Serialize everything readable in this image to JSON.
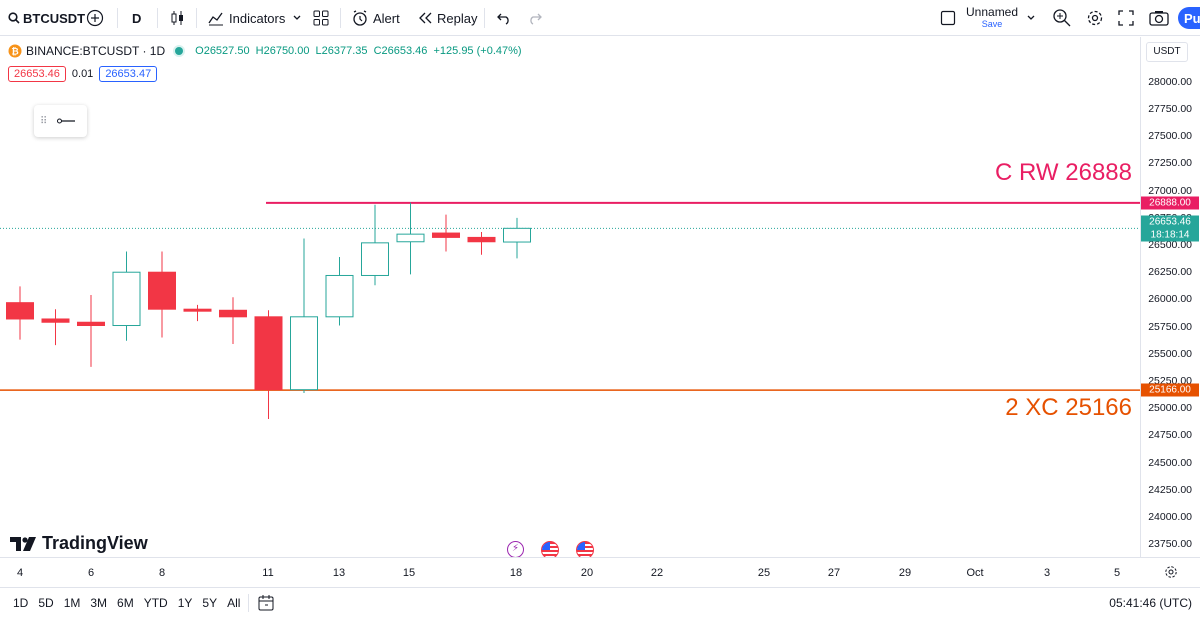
{
  "toolbar": {
    "symbol": "BTCUSDT",
    "interval": "D",
    "indicators_label": "Indicators",
    "alert_label": "Alert",
    "replay_label": "Replay",
    "layout_name": "Unnamed",
    "layout_save": "Save",
    "publish_label": "Pu"
  },
  "legend": {
    "symbol_title": "BINANCE:BTCUSDT · 1D",
    "open": "O26527.50",
    "high": "H26750.00",
    "low": "L26377.35",
    "close": "C26653.46",
    "change": "+125.95 (+0.47%)",
    "bid": "26653.46",
    "spread": "0.01",
    "ask": "26653.47"
  },
  "currency": "USDT",
  "price_axis": {
    "min": 23650,
    "max": 28100,
    "ticks": [
      "28000.00",
      "27750.00",
      "27500.00",
      "27250.00",
      "27000.00",
      "26750.00",
      "26500.00",
      "26250.00",
      "26000.00",
      "25750.00",
      "25500.00",
      "25250.00",
      "25000.00",
      "24750.00",
      "24500.00",
      "24250.00",
      "24000.00",
      "23750.00"
    ],
    "last_price": "26653.46",
    "countdown": "18:18:14",
    "resistance_tag": "26888.00",
    "support_tag": "25166.00"
  },
  "annotations": {
    "resistance_text": "C RW 26888",
    "support_text": "2 XC 25166",
    "resistance_color": "#e91e63",
    "support_color": "#e65100"
  },
  "colors": {
    "up": "#26a69a",
    "down": "#f23645"
  },
  "chart_data": {
    "type": "candlestick",
    "candles": [
      {
        "date": "Sep 4",
        "open": 25970,
        "high": 26120,
        "low": 25630,
        "close": 25820
      },
      {
        "date": "Sep 5",
        "open": 25820,
        "high": 25910,
        "low": 25580,
        "close": 25790
      },
      {
        "date": "Sep 6",
        "open": 25790,
        "high": 26040,
        "low": 25380,
        "close": 25760
      },
      {
        "date": "Sep 7",
        "open": 25760,
        "high": 26440,
        "low": 25620,
        "close": 26250
      },
      {
        "date": "Sep 8",
        "open": 26250,
        "high": 26440,
        "low": 25650,
        "close": 25910
      },
      {
        "date": "Sep 9",
        "open": 25910,
        "high": 25950,
        "low": 25800,
        "close": 25900
      },
      {
        "date": "Sep 10",
        "open": 25900,
        "high": 26020,
        "low": 25590,
        "close": 25840
      },
      {
        "date": "Sep 11",
        "open": 25840,
        "high": 25900,
        "low": 24900,
        "close": 25170
      },
      {
        "date": "Sep 12",
        "open": 25170,
        "high": 26560,
        "low": 25140,
        "close": 25840
      },
      {
        "date": "Sep 13",
        "open": 25840,
        "high": 26390,
        "low": 25760,
        "close": 26220
      },
      {
        "date": "Sep 14",
        "open": 26220,
        "high": 26870,
        "low": 26130,
        "close": 26520
      },
      {
        "date": "Sep 15",
        "open": 26530,
        "high": 26890,
        "low": 26230,
        "close": 26600
      },
      {
        "date": "Sep 16",
        "open": 26610,
        "high": 26780,
        "low": 26440,
        "close": 26570
      },
      {
        "date": "Sep 17",
        "open": 26570,
        "high": 26620,
        "low": 26410,
        "close": 26530
      },
      {
        "date": "Sep 18",
        "open": 26527.5,
        "high": 26750,
        "low": 26377.35,
        "close": 26653.46
      }
    ],
    "horizontal_lines": [
      {
        "label": "C RW 26888",
        "value": 26888
      },
      {
        "label": "2 XC 25166",
        "value": 25166
      }
    ],
    "x_ticks": [
      "4",
      "6",
      "8",
      "11",
      "13",
      "15",
      "18",
      "20",
      "22",
      "25",
      "27",
      "29",
      "Oct",
      "3",
      "5"
    ]
  },
  "bottom": {
    "timeframes": [
      "1D",
      "5D",
      "1M",
      "3M",
      "6M",
      "YTD",
      "1Y",
      "5Y",
      "All"
    ],
    "clock": "05:41:46 (UTC)"
  },
  "branding": {
    "logo_text": "TradingView"
  }
}
